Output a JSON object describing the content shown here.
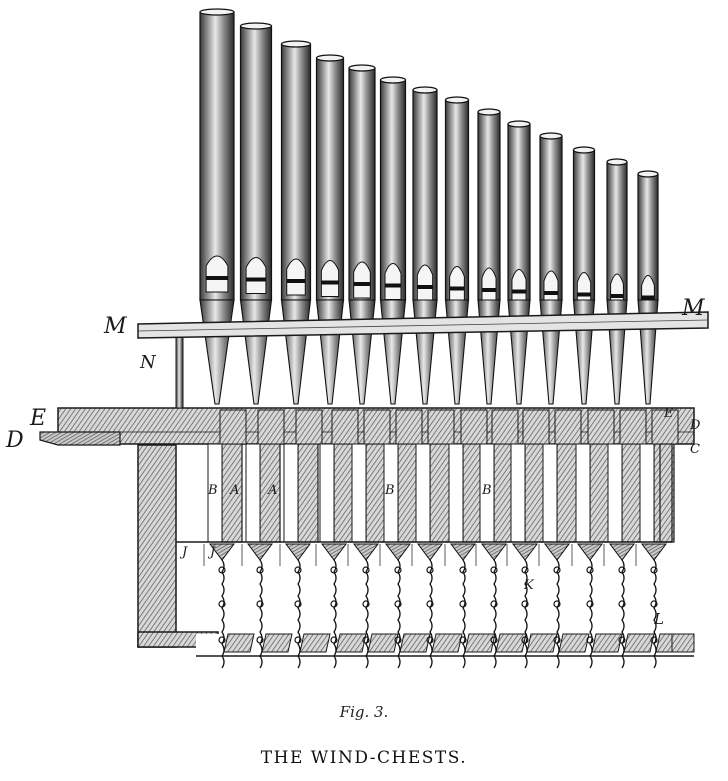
{
  "caption": {
    "figure_number": "Fig. 3.",
    "title": "THE WIND-CHESTS."
  },
  "labels": {
    "M_left": "M",
    "M_right": "M",
    "N": "N",
    "E_left": "E",
    "E_right": "E",
    "D_left": "D",
    "D_right": "D",
    "C": "C",
    "B_1": "B",
    "B_2": "B",
    "B_3": "B",
    "A_1": "A",
    "A_2": "A",
    "J_1": "J",
    "J_2": "J",
    "K": "K",
    "L": "L"
  },
  "colors": {
    "ink": "#1a1a1a",
    "hatch": "#555555",
    "paper": "#ffffff"
  }
}
